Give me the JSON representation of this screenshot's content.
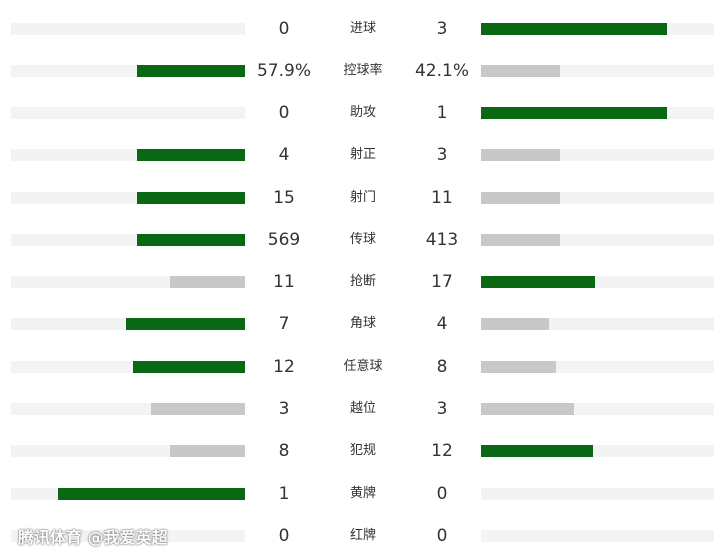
{
  "stats": [
    {
      "label": "进球",
      "left": "0",
      "right": "3",
      "left_pct": 0,
      "right_pct": 80,
      "left_win": false,
      "right_win": true
    },
    {
      "label": "控球率",
      "left": "57.9%",
      "right": "42.1%",
      "left_pct": 46,
      "right_pct": 34,
      "left_win": true,
      "right_win": false
    },
    {
      "label": "助攻",
      "left": "0",
      "right": "1",
      "left_pct": 0,
      "right_pct": 80,
      "left_win": false,
      "right_win": true
    },
    {
      "label": "射正",
      "left": "4",
      "right": "3",
      "left_pct": 46,
      "right_pct": 34,
      "left_win": true,
      "right_win": false
    },
    {
      "label": "射门",
      "left": "15",
      "right": "11",
      "left_pct": 46,
      "right_pct": 34,
      "left_win": true,
      "right_win": false
    },
    {
      "label": "传球",
      "left": "569",
      "right": "413",
      "left_pct": 46,
      "right_pct": 34,
      "left_win": true,
      "right_win": false
    },
    {
      "label": "抢断",
      "left": "11",
      "right": "17",
      "left_pct": 32,
      "right_pct": 49,
      "left_win": false,
      "right_win": true
    },
    {
      "label": "角球",
      "left": "7",
      "right": "4",
      "left_pct": 51,
      "right_pct": 29,
      "left_win": true,
      "right_win": false
    },
    {
      "label": "任意球",
      "left": "12",
      "right": "8",
      "left_pct": 48,
      "right_pct": 32,
      "left_win": true,
      "right_win": false
    },
    {
      "label": "越位",
      "left": "3",
      "right": "3",
      "left_pct": 40,
      "right_pct": 40,
      "left_win": false,
      "right_win": false
    },
    {
      "label": "犯规",
      "left": "8",
      "right": "12",
      "left_pct": 32,
      "right_pct": 48,
      "left_win": false,
      "right_win": true
    },
    {
      "label": "黄牌",
      "left": "1",
      "right": "0",
      "left_pct": 80,
      "right_pct": 0,
      "left_win": true,
      "right_win": false
    },
    {
      "label": "红牌",
      "left": "0",
      "right": "0",
      "left_pct": 0,
      "right_pct": 0,
      "left_win": false,
      "right_win": false
    }
  ],
  "colors": {
    "win": "#0a6714",
    "lose": "#c8c8c8",
    "track": "#f3f3f3"
  },
  "watermark": "腾讯体育 @我爱英超"
}
